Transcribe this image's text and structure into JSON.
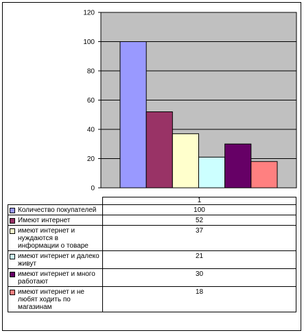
{
  "chart_data": {
    "type": "bar",
    "categories": [
      "1"
    ],
    "ylim": [
      0,
      120
    ],
    "yticks": [
      0,
      20,
      40,
      60,
      80,
      100,
      120
    ],
    "grid": true,
    "plot_background": "#c0c0c0",
    "series": [
      {
        "name": "Количество покупателей",
        "values": [
          100
        ],
        "color": "#9999ff"
      },
      {
        "name": "Имеют интернет",
        "values": [
          52
        ],
        "color": "#993366"
      },
      {
        "name": "имеют интернет и нуждаются в информации о товаре",
        "values": [
          37
        ],
        "color": "#ffffcc"
      },
      {
        "name": "имеют интернет и далеко живут",
        "values": [
          21
        ],
        "color": "#ccffff"
      },
      {
        "name": "имеют интернет и много работают",
        "values": [
          30
        ],
        "color": "#660066"
      },
      {
        "name": "имеют интернет и не любят ходить по магазинам",
        "values": [
          18
        ],
        "color": "#ff8080"
      }
    ]
  }
}
